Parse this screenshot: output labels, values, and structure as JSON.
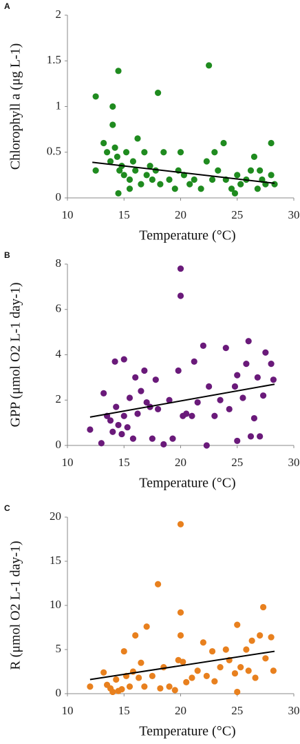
{
  "chart_data": [
    {
      "type": "scatter",
      "panel_label": "A",
      "x_label": "Temperature (°C)",
      "y_label": "Chlorophyll a (μg L-1)",
      "xlim": [
        10,
        30
      ],
      "xticks": [
        10,
        15,
        20,
        25,
        30
      ],
      "ylim": [
        0,
        2
      ],
      "yticks": [
        0,
        0.5,
        1,
        1.5,
        2
      ],
      "series": [
        {
          "color": "#1f8b1f",
          "x": [
            12.5,
            12.5,
            13.2,
            13.5,
            13.8,
            14,
            14,
            14.2,
            14.4,
            14.5,
            14.5,
            14.6,
            14.8,
            15,
            15.2,
            15.5,
            15.8,
            16,
            16.2,
            16.5,
            16.8,
            17,
            17.3,
            17.5,
            17.8,
            18,
            18.2,
            18.5,
            19,
            19.5,
            20,
            20.3,
            20.8,
            21.2,
            21.8,
            22.3,
            22.5,
            22.8,
            23,
            23.3,
            23.8,
            24,
            24.5,
            25,
            25.3,
            25.8,
            26.2,
            26.5,
            26.8,
            27.2,
            27.5,
            28,
            28,
            28.3,
            15.5,
            19.8,
            24.8,
            27
          ],
          "y": [
            1.11,
            0.3,
            0.6,
            0.5,
            0.4,
            0.8,
            1.0,
            0.55,
            0.45,
            1.39,
            0.05,
            0.3,
            0.35,
            0.25,
            0.5,
            0.2,
            0.4,
            0.3,
            0.65,
            0.15,
            0.5,
            0.25,
            0.35,
            0.2,
            0.3,
            1.15,
            0.15,
            0.5,
            0.2,
            0.1,
            0.5,
            0.25,
            0.15,
            0.2,
            0.1,
            0.4,
            1.45,
            0.2,
            0.5,
            0.3,
            0.6,
            0.2,
            0.1,
            0.25,
            0.15,
            0.2,
            0.3,
            0.45,
            0.1,
            0.2,
            0.15,
            0.6,
            0.25,
            0.15,
            0.1,
            0.3,
            0.05,
            0.3
          ]
        }
      ],
      "trend_line": {
        "color": "#000000",
        "x": [
          12.2,
          28.3
        ],
        "y": [
          0.39,
          0.16
        ]
      }
    },
    {
      "type": "scatter",
      "panel_label": "B",
      "x_label": "Temperature (°C)",
      "y_label": "GPP (μmol O2 L-1 day-1)",
      "xlim": [
        10,
        30
      ],
      "xticks": [
        10,
        15,
        20,
        25,
        30
      ],
      "ylim": [
        0,
        8
      ],
      "yticks": [
        0,
        2,
        4,
        6,
        8
      ],
      "series": [
        {
          "color": "#6a1a7a",
          "x": [
            12,
            13,
            13.2,
            13.5,
            13.8,
            14,
            14.2,
            14.3,
            14.5,
            14.8,
            15,
            15,
            15.3,
            15.5,
            15.8,
            16,
            16.2,
            16.5,
            16.8,
            17,
            17.3,
            17.5,
            17.8,
            18,
            18.5,
            19,
            19.3,
            19.8,
            20,
            20,
            20.2,
            20.5,
            21,
            21.2,
            21.5,
            22,
            22.3,
            22.5,
            23,
            23.5,
            24,
            24.3,
            24.8,
            25,
            25,
            25.5,
            25.8,
            26,
            26.2,
            26.5,
            26.8,
            27,
            27.3,
            27.5,
            28,
            28.2
          ],
          "y": [
            0.7,
            0.1,
            2.3,
            1.3,
            1.1,
            0.6,
            3.7,
            1.7,
            0.9,
            0.5,
            3.8,
            1.3,
            0.8,
            2.1,
            0.3,
            3.0,
            1.4,
            2.4,
            3.3,
            1.9,
            1.7,
            0.3,
            2.9,
            1.6,
            0.05,
            2.0,
            0.3,
            3.3,
            7.8,
            6.6,
            1.3,
            1.4,
            1.3,
            3.7,
            1.9,
            4.4,
            0.0,
            2.6,
            1.3,
            2.0,
            4.3,
            1.6,
            2.6,
            0.2,
            3.1,
            2.1,
            3.6,
            4.6,
            0.4,
            1.2,
            3.0,
            0.4,
            2.2,
            4.1,
            3.6,
            2.9
          ]
        }
      ],
      "trend_line": {
        "color": "#000000",
        "x": [
          12,
          28.3
        ],
        "y": [
          1.25,
          2.7
        ]
      }
    },
    {
      "type": "scatter",
      "panel_label": "C",
      "x_label": "Temperature (°C)",
      "y_label": "R (μmol O2 L-1 day-1)",
      "xlim": [
        10,
        30
      ],
      "xticks": [
        10,
        15,
        20,
        25,
        30
      ],
      "ylim": [
        0,
        20
      ],
      "yticks": [
        0,
        5,
        10,
        15,
        20
      ],
      "series": [
        {
          "color": "#e8801e",
          "x": [
            12,
            13.2,
            13.5,
            13.8,
            14,
            14.3,
            14.5,
            14.8,
            15,
            15.2,
            15.5,
            15.8,
            16,
            16.3,
            16.5,
            16.8,
            17,
            17.5,
            18,
            18.2,
            18.5,
            19,
            19.5,
            19.8,
            20,
            20,
            20,
            20.2,
            20.5,
            21,
            21.5,
            22,
            22.3,
            22.8,
            23,
            23.5,
            24,
            24.3,
            24.8,
            25,
            25,
            25.3,
            25.8,
            26,
            26.3,
            26.6,
            27,
            27.3,
            27.5,
            28,
            28.2
          ],
          "y": [
            0.8,
            2.4,
            1.0,
            0.6,
            0.2,
            1.6,
            0.3,
            0.5,
            4.8,
            2.0,
            0.8,
            2.5,
            6.6,
            1.8,
            3.5,
            0.8,
            7.6,
            2.0,
            12.4,
            0.6,
            3.0,
            0.8,
            0.4,
            3.8,
            19.2,
            9.2,
            6.6,
            3.6,
            1.3,
            1.8,
            2.6,
            5.8,
            2.0,
            4.8,
            1.4,
            3.0,
            5.0,
            3.8,
            2.3,
            7.8,
            0.2,
            3.0,
            5.0,
            2.6,
            6.0,
            1.8,
            6.6,
            9.8,
            4.0,
            6.4,
            2.6
          ]
        }
      ],
      "trend_line": {
        "color": "#000000",
        "x": [
          12,
          28.3
        ],
        "y": [
          1.6,
          4.8
        ]
      }
    }
  ]
}
